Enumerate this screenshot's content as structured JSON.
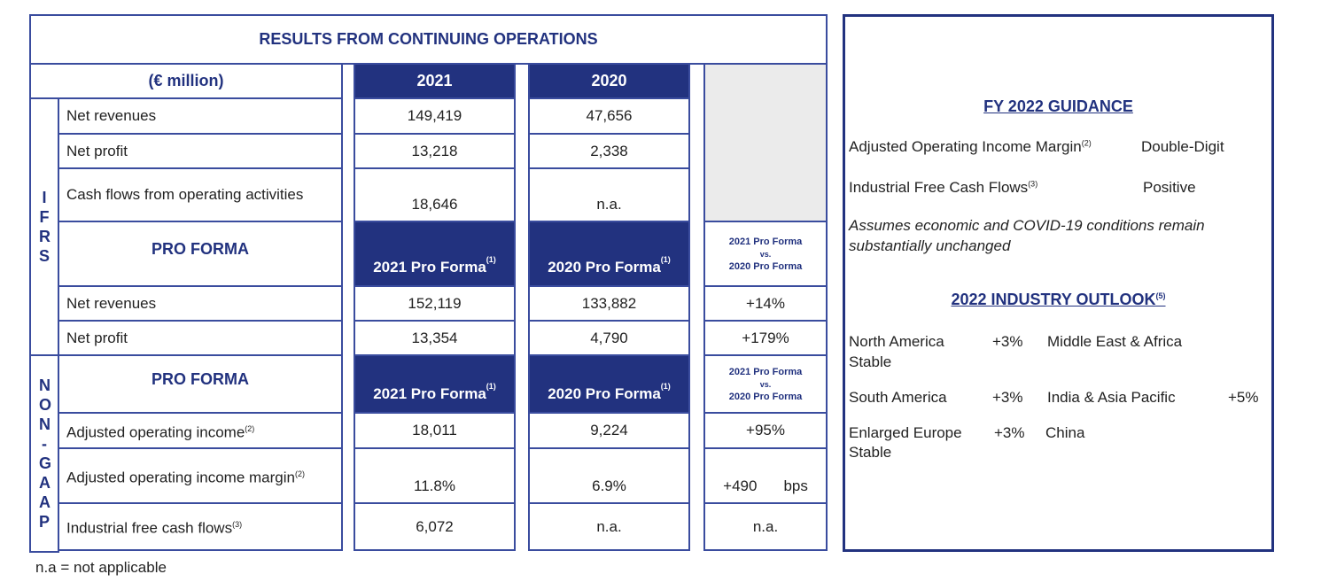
{
  "table": {
    "title": "RESULTS FROM CONTINUING OPERATIONS",
    "unit": "(€ million)",
    "header": [
      "2021",
      "2020"
    ],
    "ifrs_label": "IFRS",
    "nongaap_label": "NON-GAAP",
    "ifrs_rows": [
      {
        "label": "Net revenues",
        "values": [
          "149,419",
          "47,656"
        ]
      },
      {
        "label": "Net profit",
        "values": [
          "13,218",
          "2,338"
        ]
      },
      {
        "label": "Cash flows from operating activities",
        "values": [
          "18,646",
          "n.a."
        ]
      }
    ],
    "pro_forma_headers": [
      {
        "label": "PRO FORMA",
        "columns": [
          "2021 Pro Forma",
          "2020 Pro Forma"
        ],
        "note": "(1)",
        "comparison": [
          "2021 Pro Forma",
          "vs.",
          "2020 Pro Forma"
        ]
      },
      {
        "label": "PRO FORMA",
        "columns": [
          "2021 Pro Forma",
          "2020 Pro Forma"
        ],
        "note": "(1)",
        "comparison": [
          "2021 Pro Forma",
          "vs.",
          "2020 Pro Forma"
        ]
      }
    ],
    "pro_forma_rows": [
      {
        "label": "Net revenues",
        "values": [
          "152,119",
          "133,882"
        ],
        "change": "+14%"
      },
      {
        "label": "Net profit",
        "values": [
          "13,354",
          "4,790"
        ],
        "change": "+179%"
      }
    ],
    "nongaap_rows": [
      {
        "label": "Adjusted operating income",
        "note": "(2)",
        "values": [
          "18,011",
          "9,224"
        ],
        "change": "+95%"
      },
      {
        "label": "Adjusted operating income margin",
        "note": "(2)",
        "values": [
          "11.8%",
          "6.9%"
        ],
        "change": "+490",
        "change_unit": "bps"
      },
      {
        "label": "Industrial free cash flows",
        "note": "(3)",
        "values": [
          "6,072",
          "n.a."
        ],
        "change": "n.a."
      }
    ]
  },
  "footnote": "n.a = not applicable",
  "guidance": {
    "title": "FY 2022 GUIDANCE",
    "items": [
      {
        "label": "Adjusted Operating Income Margin",
        "note": "(2)",
        "value": "Double-Digit"
      },
      {
        "label": "Industrial Free Cash Flows",
        "note": "(3)",
        "value": "Positive"
      }
    ],
    "assumption": "Assumes economic and COVID-19 conditions remain substantially unchanged"
  },
  "outlook": {
    "title": "2022 INDUSTRY OUTLOOK",
    "note": "(5)",
    "regions": [
      {
        "name": "North America",
        "value": "+3%"
      },
      {
        "name": "Middle East & Africa",
        "value": "Stable"
      },
      {
        "name": "South America",
        "value": "+3%"
      },
      {
        "name": "India & Asia Pacific",
        "value": "+5%"
      },
      {
        "name": "Enlarged Europe",
        "value": "+3%"
      },
      {
        "name": "China",
        "value": "Stable"
      }
    ]
  }
}
